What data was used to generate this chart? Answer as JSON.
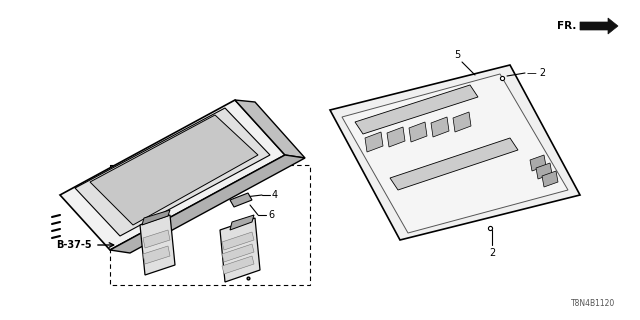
{
  "background_color": "#ffffff",
  "line_color": "#000000",
  "diagram_code": "T8N4B1120",
  "fr_text": "FR.",
  "b37_text": "B-37-5",
  "label_2a": "2",
  "label_2b": "2",
  "label_4": "4",
  "label_5": "5",
  "label_6": "6"
}
